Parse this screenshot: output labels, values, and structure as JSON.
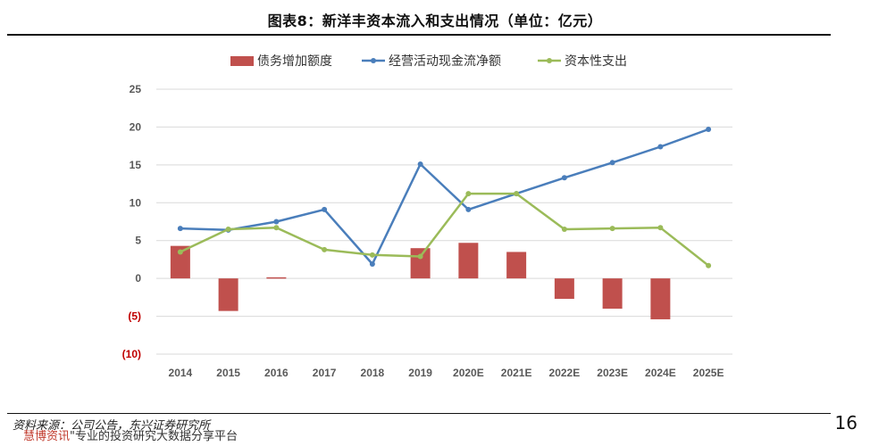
{
  "page": {
    "title": "图表8：新洋丰资本流入和支出情况（单位：亿元）",
    "source": "资料来源：公司公告，东兴证券研究所",
    "watermark_brand": "慧博资讯",
    "watermark_text": "\"专业的投资研究大数据分享平台",
    "page_number": "16"
  },
  "chart_data": {
    "type": "bar",
    "categories": [
      "2014",
      "2015",
      "2016",
      "2017",
      "2018",
      "2019",
      "2020E",
      "2021E",
      "2022E",
      "2023E",
      "2024E",
      "2025E"
    ],
    "ylim": [
      -10,
      25
    ],
    "yticks": [
      25,
      20,
      15,
      10,
      5,
      0,
      -5,
      -10
    ],
    "ytick_labels": [
      "25",
      "20",
      "15",
      "10",
      "5",
      "0",
      "(5)",
      "(10)"
    ],
    "grid": true,
    "legend_position": "top",
    "series": [
      {
        "name": "债务增加额度",
        "type": "bar",
        "color": "#c0504d",
        "values": [
          4.3,
          -4.3,
          0.15,
          0,
          0,
          4.0,
          4.7,
          3.5,
          -2.7,
          -4.0,
          -5.4,
          0
        ]
      },
      {
        "name": "经营活动现金流净额",
        "type": "line",
        "color": "#4a7ebb",
        "values": [
          6.6,
          6.4,
          7.5,
          9.1,
          1.9,
          15.1,
          9.1,
          11.2,
          13.3,
          15.3,
          17.4,
          19.7
        ]
      },
      {
        "name": "资本性支出",
        "type": "line",
        "color": "#9bbb59",
        "values": [
          3.5,
          6.5,
          6.7,
          3.8,
          3.1,
          2.9,
          11.2,
          11.2,
          6.5,
          6.6,
          6.7,
          1.7
        ]
      }
    ],
    "colors": {
      "negative_tick": "#c00000",
      "grid": "#d9d9d9",
      "axis_text": "#595959"
    }
  }
}
